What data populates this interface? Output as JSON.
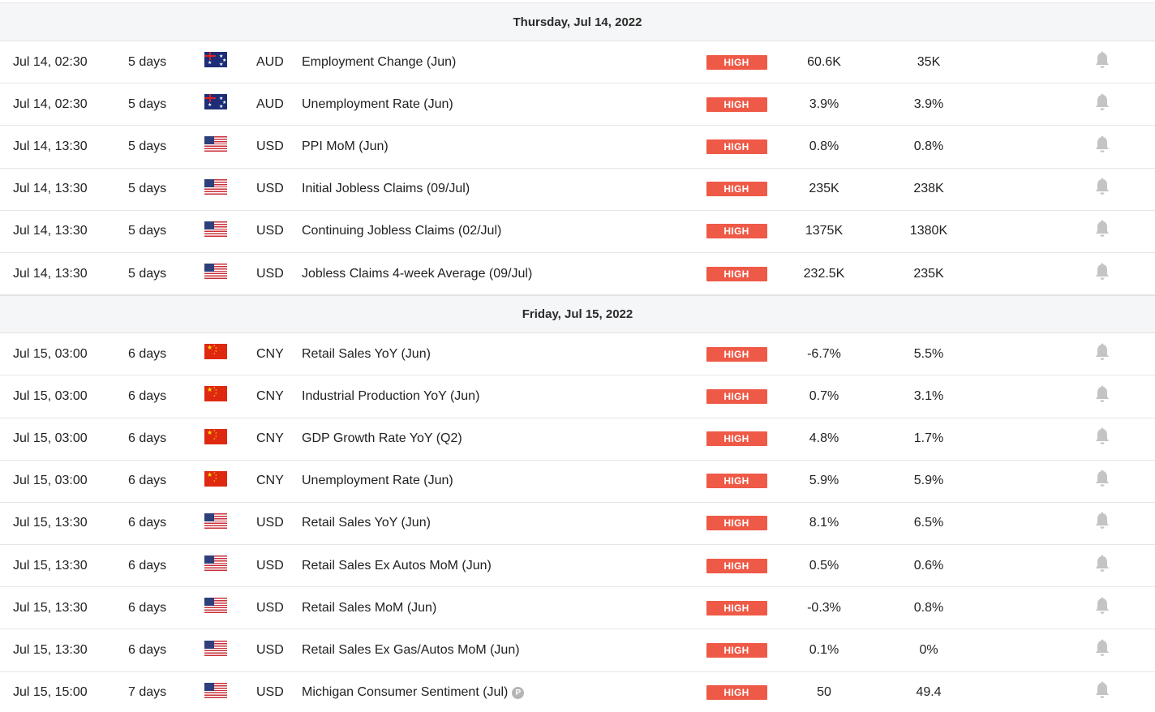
{
  "days": [
    {
      "header": "Thursday, Jul 14, 2022",
      "rows": [
        {
          "time": "Jul 14, 02:30",
          "days": "5 days",
          "flag": "aud",
          "currency": "AUD",
          "event": "Employment Change (Jun)",
          "importance": "HIGH",
          "actual": "60.6K",
          "forecast": "35K",
          "preview": false
        },
        {
          "time": "Jul 14, 02:30",
          "days": "5 days",
          "flag": "aud",
          "currency": "AUD",
          "event": "Unemployment Rate (Jun)",
          "importance": "HIGH",
          "actual": "3.9%",
          "forecast": "3.9%",
          "preview": false
        },
        {
          "time": "Jul 14, 13:30",
          "days": "5 days",
          "flag": "usd",
          "currency": "USD",
          "event": "PPI MoM (Jun)",
          "importance": "HIGH",
          "actual": "0.8%",
          "forecast": "0.8%",
          "preview": false
        },
        {
          "time": "Jul 14, 13:30",
          "days": "5 days",
          "flag": "usd",
          "currency": "USD",
          "event": "Initial Jobless Claims (09/Jul)",
          "importance": "HIGH",
          "actual": "235K",
          "forecast": "238K",
          "preview": false
        },
        {
          "time": "Jul 14, 13:30",
          "days": "5 days",
          "flag": "usd",
          "currency": "USD",
          "event": "Continuing Jobless Claims (02/Jul)",
          "importance": "HIGH",
          "actual": "1375K",
          "forecast": "1380K",
          "preview": false
        },
        {
          "time": "Jul 14, 13:30",
          "days": "5 days",
          "flag": "usd",
          "currency": "USD",
          "event": "Jobless Claims 4-week Average (09/Jul)",
          "importance": "HIGH",
          "actual": "232.5K",
          "forecast": "235K",
          "preview": false
        }
      ]
    },
    {
      "header": "Friday, Jul 15, 2022",
      "rows": [
        {
          "time": "Jul 15, 03:00",
          "days": "6 days",
          "flag": "cny",
          "currency": "CNY",
          "event": "Retail Sales YoY (Jun)",
          "importance": "HIGH",
          "actual": "-6.7%",
          "forecast": "5.5%",
          "preview": false
        },
        {
          "time": "Jul 15, 03:00",
          "days": "6 days",
          "flag": "cny",
          "currency": "CNY",
          "event": "Industrial Production YoY (Jun)",
          "importance": "HIGH",
          "actual": "0.7%",
          "forecast": "3.1%",
          "preview": false
        },
        {
          "time": "Jul 15, 03:00",
          "days": "6 days",
          "flag": "cny",
          "currency": "CNY",
          "event": "GDP Growth Rate YoY (Q2)",
          "importance": "HIGH",
          "actual": "4.8%",
          "forecast": "1.7%",
          "preview": false
        },
        {
          "time": "Jul 15, 03:00",
          "days": "6 days",
          "flag": "cny",
          "currency": "CNY",
          "event": "Unemployment Rate (Jun)",
          "importance": "HIGH",
          "actual": "5.9%",
          "forecast": "5.9%",
          "preview": false
        },
        {
          "time": "Jul 15, 13:30",
          "days": "6 days",
          "flag": "usd",
          "currency": "USD",
          "event": "Retail Sales YoY (Jun)",
          "importance": "HIGH",
          "actual": "8.1%",
          "forecast": "6.5%",
          "preview": false
        },
        {
          "time": "Jul 15, 13:30",
          "days": "6 days",
          "flag": "usd",
          "currency": "USD",
          "event": "Retail Sales Ex Autos MoM (Jun)",
          "importance": "HIGH",
          "actual": "0.5%",
          "forecast": "0.6%",
          "preview": false
        },
        {
          "time": "Jul 15, 13:30",
          "days": "6 days",
          "flag": "usd",
          "currency": "USD",
          "event": "Retail Sales MoM (Jun)",
          "importance": "HIGH",
          "actual": "-0.3%",
          "forecast": "0.8%",
          "preview": false
        },
        {
          "time": "Jul 15, 13:30",
          "days": "6 days",
          "flag": "usd",
          "currency": "USD",
          "event": "Retail Sales Ex Gas/Autos MoM (Jun)",
          "importance": "HIGH",
          "actual": "0.1%",
          "forecast": "0%",
          "preview": false
        },
        {
          "time": "Jul 15, 15:00",
          "days": "7 days",
          "flag": "usd",
          "currency": "USD",
          "event": "Michigan Consumer Sentiment (Jul)",
          "importance": "HIGH",
          "actual": "50",
          "forecast": "49.4",
          "preview": true,
          "preview_label": "P"
        }
      ]
    }
  ],
  "colors": {
    "high_badge": "#ee5a47",
    "header_bg": "#f5f6f8",
    "bell": "#c4c4c4"
  },
  "icons": {
    "bell": "bell-icon",
    "preview": "preview-badge-icon"
  }
}
